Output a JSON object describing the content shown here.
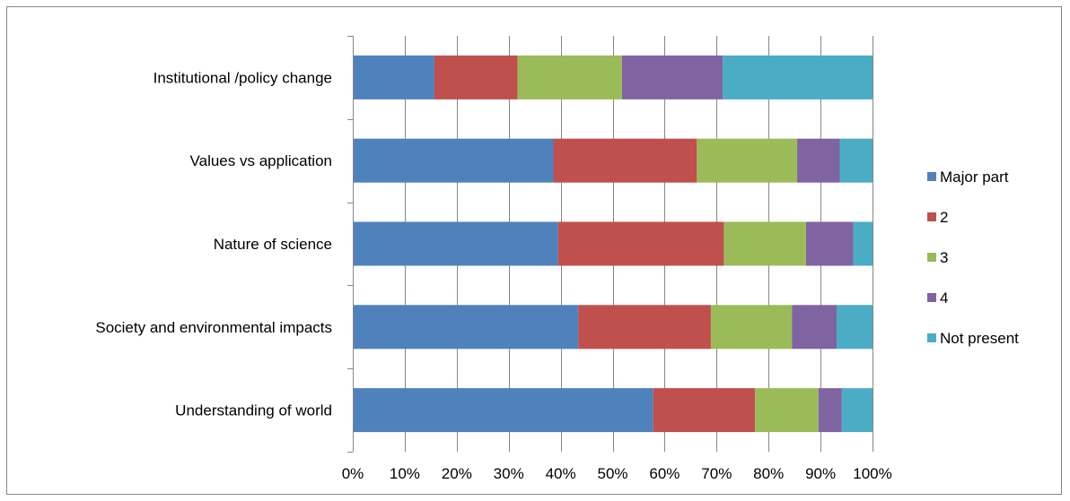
{
  "chart_data": {
    "type": "bar",
    "orientation": "horizontal",
    "stacked": "percent",
    "categories": [
      "Institutional /policy change",
      "Values vs application",
      "Nature of science",
      "Society and environmental impacts",
      "Understanding of world"
    ],
    "series": [
      {
        "name": "Major part",
        "color": "#4F81BD",
        "values": [
          15.7,
          38.6,
          39.5,
          43.4,
          57.8
        ]
      },
      {
        "name": "2",
        "color": "#C0504D",
        "values": [
          16.0,
          27.6,
          31.9,
          25.5,
          19.6
        ]
      },
      {
        "name": "3",
        "color": "#9BBB59",
        "values": [
          20.1,
          19.3,
          15.8,
          15.6,
          12.2
        ]
      },
      {
        "name": "4",
        "color": "#8064A2",
        "values": [
          19.4,
          8.2,
          9.1,
          8.6,
          4.5
        ]
      },
      {
        "name": "Not present",
        "color": "#4BACC6",
        "values": [
          28.8,
          6.3,
          3.7,
          6.9,
          5.9
        ]
      }
    ],
    "x_ticks": [
      "0%",
      "10%",
      "20%",
      "30%",
      "40%",
      "50%",
      "60%",
      "70%",
      "80%",
      "90%",
      "100%"
    ],
    "xlim": [
      0,
      100
    ],
    "grid": "vertical",
    "legend_position": "right",
    "title": "",
    "xlabel": "",
    "ylabel": ""
  }
}
